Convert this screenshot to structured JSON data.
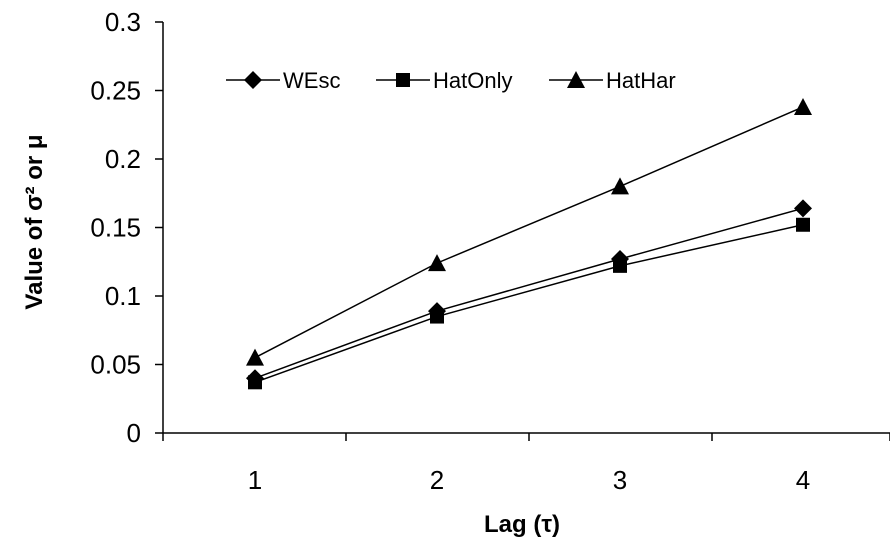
{
  "chart_data": {
    "type": "line",
    "x": [
      1,
      2,
      3,
      4
    ],
    "categories": [
      "1",
      "2",
      "3",
      "4"
    ],
    "series": [
      {
        "name": "WEsc",
        "marker": "diamond",
        "values": [
          0.04,
          0.089,
          0.127,
          0.164
        ]
      },
      {
        "name": "HatOnly",
        "marker": "square",
        "values": [
          0.037,
          0.085,
          0.122,
          0.152
        ]
      },
      {
        "name": "HatHar",
        "marker": "triangle",
        "values": [
          0.055,
          0.124,
          0.18,
          0.238
        ]
      }
    ],
    "ylim": [
      0,
      0.3
    ],
    "yticks": [
      0,
      0.05,
      0.1,
      0.15,
      0.2,
      0.25,
      0.3
    ],
    "ytick_labels": [
      "0",
      "0.05",
      "0.1",
      "0.15",
      "0.2",
      "0.25",
      "0.3"
    ],
    "xlabel": "Lag (τ)",
    "ylabel": "Value of σ² or μ",
    "legend_position": "top-left",
    "grid": false,
    "line_color": "#000000"
  }
}
